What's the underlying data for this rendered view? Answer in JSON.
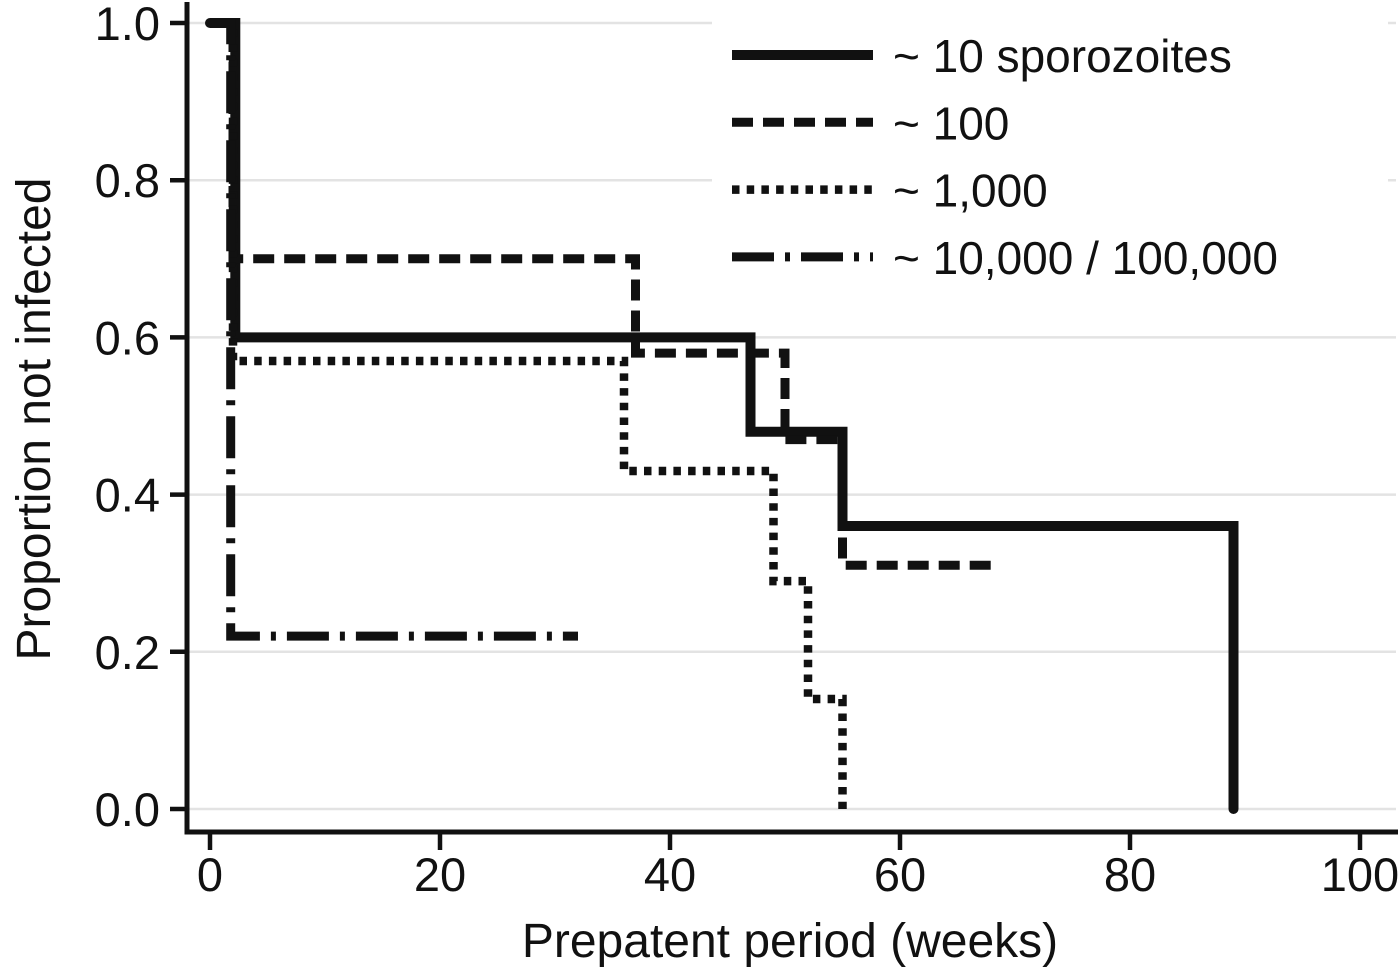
{
  "page": {
    "background": "#ffffff"
  },
  "colors": {
    "line": "#111111",
    "grid": "#e3e3e3",
    "text": "#111111",
    "legend_background": "#ffffff"
  },
  "chart_data": {
    "type": "line",
    "subtype": "kaplan-meier-step",
    "title": "",
    "xlabel": "Prepatent period (weeks)",
    "ylabel": "Proportion not infected",
    "xlim": [
      0,
      100
    ],
    "ylim": [
      0.0,
      1.0
    ],
    "x_ticks": [
      "0",
      "20",
      "40",
      "60",
      "80",
      "100"
    ],
    "y_ticks": [
      "0.0",
      "0.2",
      "0.4",
      "0.6",
      "0.8",
      "1.0"
    ],
    "grid": "horizontal",
    "legend_position": "top-right",
    "series": [
      {
        "name": "~ 10 sporozoites",
        "line_style": "solid",
        "points": [
          [
            0,
            1.0
          ],
          [
            2.2,
            1.0
          ],
          [
            2.2,
            0.6
          ],
          [
            47,
            0.6
          ],
          [
            47,
            0.48
          ],
          [
            55,
            0.48
          ],
          [
            55,
            0.36
          ],
          [
            89,
            0.36
          ],
          [
            89,
            0.0
          ]
        ]
      },
      {
        "name": "~ 100",
        "line_style": "dashed",
        "points": [
          [
            0,
            1.0
          ],
          [
            2,
            1.0
          ],
          [
            2,
            0.7
          ],
          [
            37,
            0.7
          ],
          [
            37,
            0.58
          ],
          [
            50,
            0.58
          ],
          [
            50,
            0.47
          ],
          [
            55,
            0.47
          ],
          [
            55,
            0.31
          ],
          [
            68,
            0.31
          ]
        ]
      },
      {
        "name": "~ 1,000",
        "line_style": "dotted",
        "points": [
          [
            0,
            1.0
          ],
          [
            2,
            1.0
          ],
          [
            2,
            0.57
          ],
          [
            36,
            0.57
          ],
          [
            36,
            0.43
          ],
          [
            49,
            0.43
          ],
          [
            49,
            0.29
          ],
          [
            52,
            0.29
          ],
          [
            52,
            0.14
          ],
          [
            55,
            0.14
          ],
          [
            55,
            0.0
          ]
        ]
      },
      {
        "name": "~ 10,000 / 100,000",
        "line_style": "dashdot",
        "points": [
          [
            0,
            1.0
          ],
          [
            1.8,
            1.0
          ],
          [
            1.8,
            0.22
          ],
          [
            32,
            0.22
          ]
        ]
      }
    ]
  }
}
